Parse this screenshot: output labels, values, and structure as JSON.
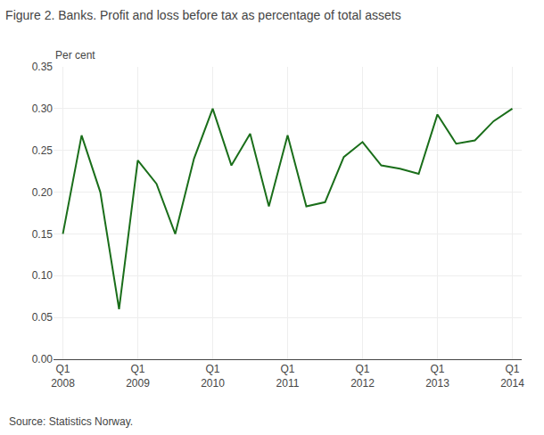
{
  "chart_data": {
    "type": "line",
    "title": "Figure 2. Banks. Profit and loss before tax as percentage of total assets",
    "annotations": [
      "Per cent",
      "Source: Statistics Norway."
    ],
    "categories": [
      "Q1\n2008",
      null,
      null,
      null,
      "Q1\n2009",
      null,
      null,
      null,
      "Q1\n2010",
      null,
      null,
      null,
      "Q1\n2011",
      null,
      null,
      null,
      "Q1\n2012",
      null,
      null,
      null,
      "Q1\n2013",
      null,
      null,
      null,
      "Q1\n2014"
    ],
    "values": [
      0.15,
      0.268,
      0.2,
      0.06,
      0.238,
      0.21,
      0.15,
      0.24,
      0.3,
      0.232,
      0.27,
      0.183,
      0.268,
      0.183,
      0.188,
      0.242,
      0.26,
      0.232,
      0.228,
      0.222,
      0.293,
      0.258,
      0.262,
      0.285,
      0.3
    ],
    "color": "#1a6e1a",
    "ylim": [
      0.0,
      0.35
    ],
    "yticks": [
      {
        "value": 0.0,
        "label": "0.00"
      },
      0.05,
      {
        "value": 0.1,
        "label": "0.10"
      },
      0.15,
      {
        "value": 0.2,
        "label": "0.20"
      },
      0.25,
      {
        "value": 0.3,
        "label": "0.30"
      },
      0.35
    ],
    "grid": true
  }
}
